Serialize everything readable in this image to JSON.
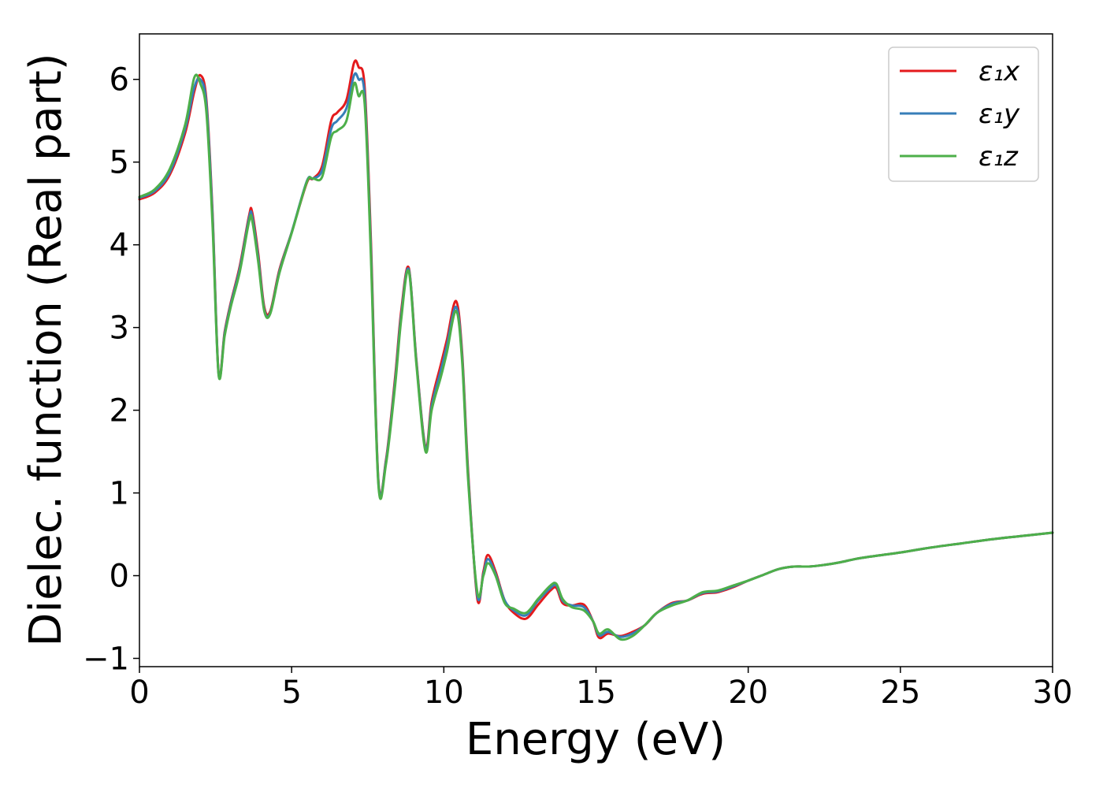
{
  "chart_data": {
    "type": "line",
    "title": "",
    "xlabel": "Energy (eV)",
    "ylabel": "Dielec. function (Real part)",
    "xlim": [
      0,
      30
    ],
    "ylim": [
      -1.1,
      6.55
    ],
    "xticks": [
      0,
      5,
      10,
      15,
      20,
      25,
      30
    ],
    "xtick_labels": [
      "0",
      "5",
      "10",
      "15",
      "20",
      "25",
      "30"
    ],
    "yticks": [
      -1,
      0,
      1,
      2,
      3,
      4,
      5,
      6
    ],
    "ytick_labels": [
      "−1",
      "0",
      "1",
      "2",
      "3",
      "4",
      "5",
      "6"
    ],
    "grid": false,
    "legend_position": "top-right",
    "series": [
      {
        "name": "ε₁x",
        "color": "#e41a1c",
        "x": [
          0,
          0.5,
          1.0,
          1.5,
          1.8,
          2.0,
          2.2,
          2.4,
          2.6,
          2.8,
          3.0,
          3.3,
          3.6,
          3.7,
          3.9,
          4.1,
          4.3,
          4.6,
          5.0,
          5.5,
          5.7,
          6.0,
          6.3,
          6.5,
          6.8,
          7.05,
          7.2,
          7.4,
          7.6,
          7.85,
          8.1,
          8.4,
          8.6,
          8.85,
          9.1,
          9.4,
          9.6,
          9.9,
          10.1,
          10.4,
          10.6,
          10.8,
          11.1,
          11.3,
          11.45,
          11.7,
          12.0,
          12.3,
          12.7,
          13.1,
          13.5,
          13.7,
          13.9,
          14.2,
          14.6,
          14.9,
          15.1,
          15.4,
          15.8,
          16.2,
          16.6,
          17.0,
          17.5,
          18.0,
          18.5,
          19.0,
          19.5,
          20.0,
          20.5,
          21.0,
          21.5,
          22.0,
          22.5,
          23.0,
          23.5,
          24.0,
          25.0,
          26.0,
          27.0,
          28.0,
          29.0,
          30.0
        ],
        "values": [
          4.55,
          4.63,
          4.85,
          5.35,
          5.85,
          6.05,
          5.75,
          4.4,
          2.45,
          2.95,
          3.3,
          3.75,
          4.35,
          4.4,
          3.9,
          3.25,
          3.2,
          3.7,
          4.15,
          4.75,
          4.8,
          4.95,
          5.5,
          5.6,
          5.75,
          6.2,
          6.15,
          5.9,
          4.1,
          1.15,
          1.4,
          2.4,
          3.2,
          3.72,
          2.6,
          1.55,
          2.1,
          2.55,
          2.85,
          3.32,
          2.7,
          1.25,
          -0.28,
          0.05,
          0.25,
          0.05,
          -0.3,
          -0.45,
          -0.52,
          -0.35,
          -0.18,
          -0.15,
          -0.33,
          -0.36,
          -0.35,
          -0.55,
          -0.75,
          -0.7,
          -0.73,
          -0.68,
          -0.6,
          -0.45,
          -0.33,
          -0.3,
          -0.22,
          -0.2,
          -0.14,
          -0.06,
          0.01,
          0.08,
          0.11,
          0.11,
          0.13,
          0.16,
          0.2,
          0.23,
          0.28,
          0.34,
          0.39,
          0.44,
          0.48,
          0.52
        ]
      },
      {
        "name": "ε₁y",
        "color": "#377eb8",
        "x": [
          0,
          0.5,
          1.0,
          1.5,
          1.8,
          2.0,
          2.2,
          2.4,
          2.6,
          2.8,
          3.0,
          3.3,
          3.6,
          3.7,
          3.9,
          4.1,
          4.3,
          4.6,
          5.0,
          5.5,
          5.7,
          6.0,
          6.3,
          6.5,
          6.8,
          7.05,
          7.2,
          7.4,
          7.6,
          7.85,
          8.1,
          8.4,
          8.6,
          8.85,
          9.1,
          9.4,
          9.6,
          9.9,
          10.1,
          10.4,
          10.6,
          10.8,
          11.1,
          11.3,
          11.45,
          11.7,
          12.0,
          12.3,
          12.7,
          13.1,
          13.5,
          13.7,
          13.9,
          14.2,
          14.6,
          14.9,
          15.1,
          15.4,
          15.8,
          16.2,
          16.6,
          17.0,
          17.5,
          18.0,
          18.5,
          19.0,
          19.5,
          20.0,
          20.5,
          21.0,
          21.5,
          22.0,
          22.5,
          23.0,
          23.5,
          24.0,
          25.0,
          26.0,
          27.0,
          28.0,
          29.0,
          30.0
        ],
        "values": [
          4.57,
          4.65,
          4.88,
          5.4,
          5.9,
          6.0,
          5.7,
          4.35,
          2.44,
          2.93,
          3.28,
          3.72,
          4.32,
          4.35,
          3.85,
          3.22,
          3.18,
          3.68,
          4.15,
          4.77,
          4.8,
          4.9,
          5.4,
          5.5,
          5.65,
          6.05,
          6.0,
          5.8,
          4.0,
          1.13,
          1.38,
          2.35,
          3.15,
          3.7,
          2.58,
          1.53,
          2.05,
          2.48,
          2.78,
          3.25,
          2.65,
          1.2,
          -0.24,
          0.02,
          0.2,
          0.02,
          -0.3,
          -0.42,
          -0.48,
          -0.3,
          -0.15,
          -0.12,
          -0.3,
          -0.36,
          -0.38,
          -0.55,
          -0.72,
          -0.68,
          -0.74,
          -0.7,
          -0.6,
          -0.45,
          -0.34,
          -0.3,
          -0.21,
          -0.19,
          -0.13,
          -0.06,
          0.01,
          0.08,
          0.11,
          0.11,
          0.13,
          0.16,
          0.2,
          0.23,
          0.28,
          0.34,
          0.39,
          0.44,
          0.48,
          0.52
        ]
      },
      {
        "name": "ε₁z",
        "color": "#4daf4a",
        "x": [
          0,
          0.5,
          1.0,
          1.5,
          1.8,
          2.0,
          2.2,
          2.4,
          2.6,
          2.8,
          3.0,
          3.3,
          3.6,
          3.7,
          3.9,
          4.1,
          4.3,
          4.6,
          5.0,
          5.5,
          5.7,
          6.0,
          6.3,
          6.5,
          6.8,
          7.05,
          7.2,
          7.4,
          7.6,
          7.85,
          8.1,
          8.4,
          8.6,
          8.85,
          9.1,
          9.4,
          9.6,
          9.9,
          10.1,
          10.4,
          10.6,
          10.8,
          11.1,
          11.3,
          11.45,
          11.7,
          12.0,
          12.3,
          12.7,
          13.1,
          13.5,
          13.7,
          13.9,
          14.2,
          14.6,
          14.9,
          15.1,
          15.4,
          15.8,
          16.2,
          16.6,
          17.0,
          17.5,
          18.0,
          18.5,
          19.0,
          19.5,
          20.0,
          20.5,
          21.0,
          21.5,
          22.0,
          22.5,
          23.0,
          23.5,
          24.0,
          25.0,
          26.0,
          27.0,
          28.0,
          29.0,
          30.0
        ],
        "values": [
          4.58,
          4.67,
          4.92,
          5.45,
          6.02,
          5.95,
          5.6,
          4.25,
          2.43,
          2.9,
          3.25,
          3.68,
          4.28,
          4.3,
          3.8,
          3.2,
          3.17,
          3.66,
          4.14,
          4.76,
          4.8,
          4.82,
          5.3,
          5.38,
          5.5,
          5.95,
          5.8,
          5.7,
          3.9,
          1.1,
          1.35,
          2.3,
          3.1,
          3.68,
          2.55,
          1.5,
          2.0,
          2.4,
          2.7,
          3.2,
          2.6,
          1.15,
          -0.2,
          0.0,
          0.15,
          0.0,
          -0.33,
          -0.4,
          -0.45,
          -0.28,
          -0.12,
          -0.1,
          -0.28,
          -0.38,
          -0.42,
          -0.55,
          -0.7,
          -0.65,
          -0.77,
          -0.73,
          -0.6,
          -0.45,
          -0.36,
          -0.3,
          -0.2,
          -0.18,
          -0.12,
          -0.06,
          0.01,
          0.08,
          0.11,
          0.11,
          0.13,
          0.16,
          0.2,
          0.23,
          0.28,
          0.34,
          0.39,
          0.44,
          0.48,
          0.52
        ]
      }
    ]
  }
}
